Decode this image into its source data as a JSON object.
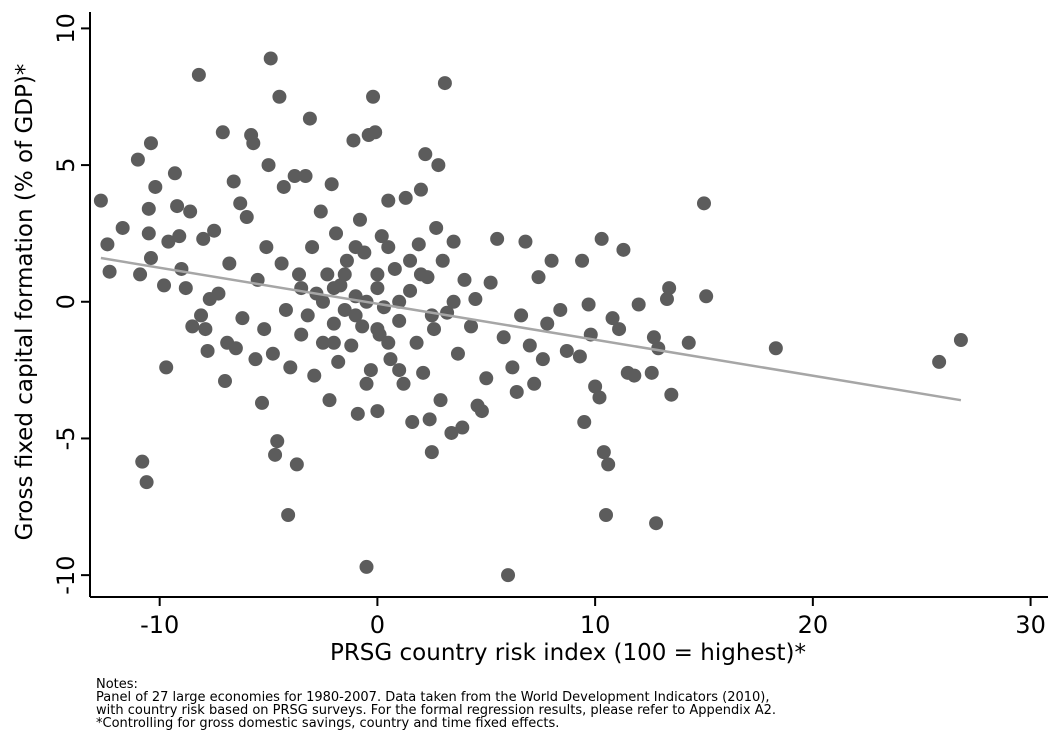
{
  "chart_data": {
    "type": "scatter",
    "xlabel": "PRSG country risk index (100 = highest)*",
    "ylabel": "Gross fixed capital formation (% of GDP)*",
    "xlim": [
      -13.2,
      30.8
    ],
    "ylim": [
      -10.8,
      10.6
    ],
    "xticks": [
      -10,
      0,
      10,
      20,
      30
    ],
    "yticks": [
      10,
      5,
      0,
      -5,
      -10
    ],
    "color": "#5c5c5c",
    "x": [
      -12.7,
      -12.4,
      -12.3,
      -11.7,
      -11,
      -10.9,
      -10.8,
      -10.6,
      -10.5,
      -10.5,
      -10.4,
      -10.4,
      -10.2,
      -9.8,
      -9.7,
      -9.6,
      -9.3,
      -9.2,
      -9.1,
      -9,
      -8.8,
      -8.6,
      -8.5,
      -8.2,
      -8.1,
      -8,
      -7.9,
      -7.8,
      -7.7,
      -7.5,
      -7.3,
      -7.1,
      -7,
      -6.9,
      -6.8,
      -6.6,
      -6.5,
      -6.3,
      -6.2,
      -6,
      -5.8,
      -5.7,
      -5.6,
      -5.5,
      -5.3,
      -5.2,
      -5.1,
      -5,
      -4.9,
      -4.8,
      -4.7,
      -4.6,
      -4.5,
      -4.4,
      -4.3,
      -4.2,
      -4.1,
      -4,
      -3.8,
      -3.7,
      -3.6,
      -3.5,
      -3.3,
      -3.2,
      -3.1,
      -3,
      -2.9,
      -2.8,
      -2.6,
      -2.5,
      -2.3,
      -2.2,
      -2.1,
      -2,
      -1.9,
      -1.8,
      -1.7,
      -1.5,
      -1.4,
      -1.2,
      -1.1,
      -1,
      -0.9,
      -0.8,
      -0.7,
      -0.6,
      -0.5,
      -0.4,
      -0.3,
      -0.2,
      -0.1,
      0,
      0,
      0.1,
      0.2,
      0.3,
      0.5,
      0.6,
      0.8,
      1,
      1.2,
      1.3,
      1.5,
      1.6,
      1.8,
      1.9,
      2,
      2.1,
      2.2,
      2.3,
      2.4,
      2.5,
      2.6,
      2.7,
      2.8,
      2.9,
      3,
      3.1,
      3.2,
      3.4,
      3.5,
      3.7,
      3.9,
      4,
      4.3,
      4.6,
      4.8,
      5,
      5.2,
      5.5,
      5.8,
      6,
      6.2,
      6.4,
      6.6,
      6.8,
      7,
      7.2,
      7.4,
      7.6,
      7.8,
      8,
      8.4,
      8.7,
      9.3,
      9.4,
      9.5,
      9.7,
      9.8,
      10,
      10.2,
      10.3,
      10.4,
      10.5,
      10.6,
      10.8,
      11.1,
      11.3,
      11.5,
      11.8,
      12,
      12.6,
      12.7,
      12.8,
      12.9,
      13.3,
      13.4,
      13.5,
      14.3,
      15,
      15.1,
      18.3,
      25.8,
      26.8,
      -2,
      -1,
      0,
      1,
      -1.5,
      0.5,
      -0.5,
      1.5,
      -2.5,
      2.5,
      -3.5,
      3.5,
      -1,
      1,
      0,
      -2,
      2,
      -0.5,
      0.5,
      4.5
    ],
    "values": [
      3.7,
      2.1,
      1.1,
      2.7,
      5.2,
      1.0,
      -5.85,
      -6.6,
      3.4,
      2.5,
      5.8,
      1.6,
      4.2,
      0.6,
      -2.4,
      2.2,
      4.7,
      3.5,
      2.4,
      1.2,
      0.5,
      3.3,
      -0.9,
      8.3,
      -0.5,
      2.3,
      -1.0,
      -1.8,
      0.1,
      2.6,
      0.3,
      6.2,
      -2.9,
      -1.5,
      1.4,
      4.4,
      -1.7,
      3.6,
      -0.6,
      3.1,
      6.1,
      5.8,
      -2.1,
      0.8,
      -3.7,
      -1.0,
      2.0,
      5.0,
      8.9,
      -1.9,
      -5.6,
      -5.1,
      7.5,
      1.4,
      4.2,
      -0.3,
      -7.8,
      -2.4,
      4.6,
      -5.95,
      1.0,
      -1.2,
      4.6,
      -0.5,
      6.7,
      2.0,
      -2.7,
      0.3,
      3.3,
      -1.5,
      1.0,
      -3.6,
      4.3,
      -0.8,
      2.5,
      -2.2,
      0.6,
      -0.3,
      1.5,
      -1.6,
      5.9,
      0.2,
      -4.1,
      3.0,
      -0.9,
      1.8,
      -9.7,
      6.1,
      -2.5,
      7.5,
      6.2,
      -4.0,
      0.5,
      -1.2,
      2.4,
      -0.2,
      3.7,
      -2.1,
      1.2,
      -0.7,
      -3.0,
      3.8,
      0.4,
      -4.4,
      -1.5,
      2.1,
      4.1,
      -2.6,
      5.4,
      0.9,
      -4.3,
      -5.5,
      -1.0,
      2.7,
      5.0,
      -3.6,
      1.5,
      8.0,
      -0.4,
      -4.8,
      2.2,
      -1.9,
      -4.6,
      0.8,
      -0.9,
      -3.8,
      -4.0,
      -2.8,
      0.7,
      2.3,
      -1.3,
      -10.0,
      -2.4,
      -3.3,
      -0.5,
      2.2,
      -1.6,
      -3.0,
      0.9,
      -2.1,
      -0.8,
      1.5,
      -0.3,
      -1.8,
      -2.0,
      1.5,
      -4.4,
      -0.1,
      -1.2,
      -3.1,
      -3.5,
      2.3,
      -5.5,
      -7.8,
      -5.95,
      -0.6,
      -1.0,
      1.9,
      -2.6,
      -2.7,
      -0.1,
      -2.6,
      -1.3,
      -8.1,
      -1.7,
      0.1,
      0.5,
      -3.4,
      -1.5,
      3.6,
      0.2,
      -1.7,
      -2.2,
      -1.4,
      0.5,
      -0.5,
      1,
      0,
      1,
      -1.5,
      0,
      1.5,
      0,
      -0.5,
      0.5,
      0,
      2,
      -2.5,
      -1,
      -1.5,
      1,
      -3,
      2,
      0.1
    ],
    "fit": {
      "color": "#a6a6a6",
      "x": [
        -12.7,
        26.8
      ],
      "values": [
        1.6,
        -3.6
      ]
    },
    "notes": [
      "Notes:",
      "Panel of 27 large economies for 1980-2007. Data taken from the World Development Indicators (2010),",
      "with country risk based on PRSG surveys. For the formal regression results, please refer to Appendix A2.",
      "*Controlling for gross domestic savings, country and time fixed effects."
    ]
  }
}
